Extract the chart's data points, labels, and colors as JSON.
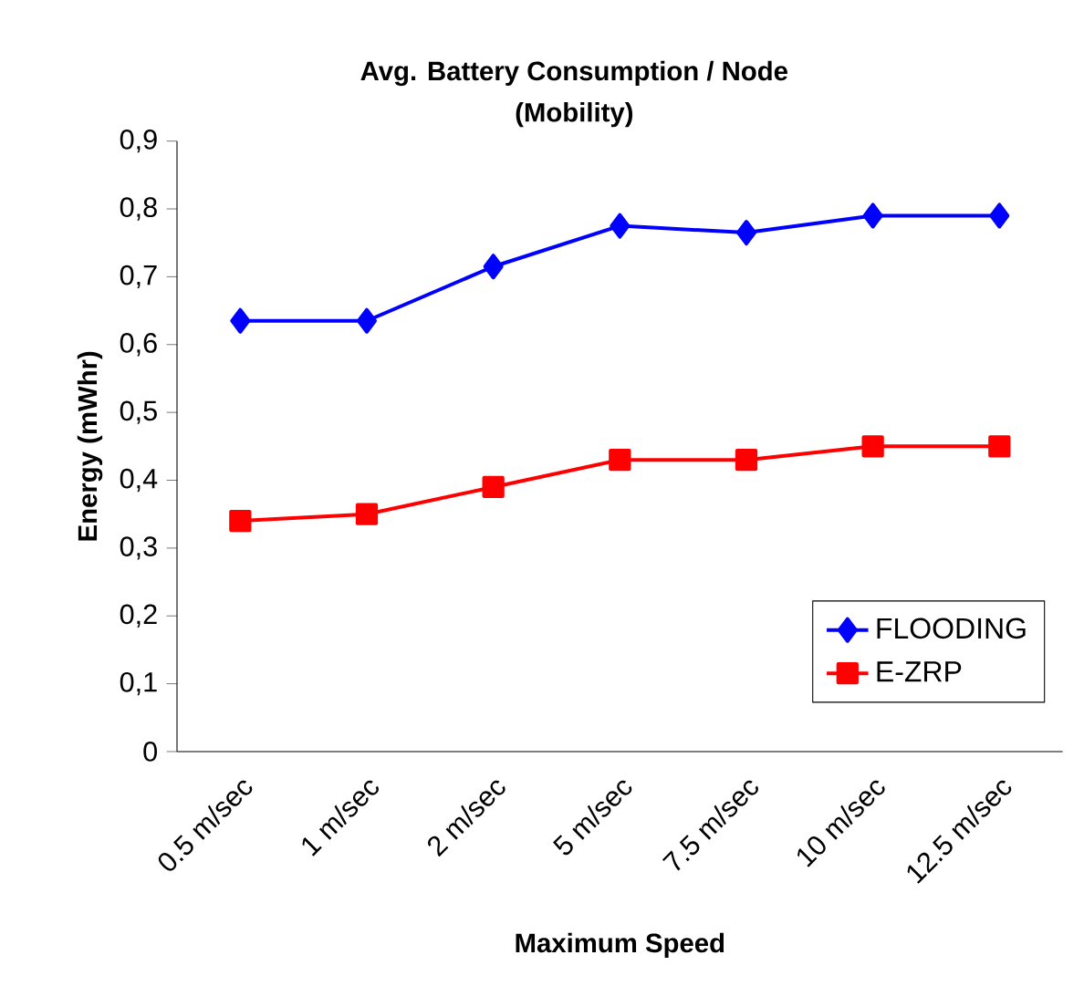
{
  "chart_data": {
    "type": "line",
    "title": "Avg. Battery Consumption / Node",
    "subtitle": "(Mobility)",
    "xlabel": "Maximum Speed",
    "ylabel": "Energy (mWhr)",
    "categories": [
      "0.5 m/sec",
      "1 m/sec",
      "2 m/sec",
      "5 m/sec",
      "7.5 m/sec",
      "10 m/sec",
      "12.5 m/sec"
    ],
    "series": [
      {
        "name": "FLOODING",
        "color": "#0000ff",
        "marker": "diamond",
        "values": [
          0.635,
          0.635,
          0.715,
          0.775,
          0.765,
          0.79,
          0.79
        ]
      },
      {
        "name": "E-ZRP",
        "color": "#ff0000",
        "marker": "square",
        "values": [
          0.34,
          0.35,
          0.39,
          0.43,
          0.43,
          0.45,
          0.45
        ]
      }
    ],
    "ylim": [
      0,
      0.9
    ],
    "yticks": [
      0,
      {
        "value": 0.1,
        "label": "0,1"
      },
      {
        "value": 0.2,
        "label": "0,2"
      },
      {
        "value": 0.3,
        "label": "0,3"
      },
      {
        "value": 0.4,
        "label": "0,4"
      },
      {
        "value": 0.5,
        "label": "0,5"
      },
      {
        "value": 0.6,
        "label": "0,6"
      },
      {
        "value": 0.7,
        "label": "0,7"
      },
      {
        "value": 0.8,
        "label": "0,8"
      },
      {
        "value": 0.9,
        "label": "0,9"
      }
    ],
    "grid": false,
    "legend": "bottom right",
    "line_style": "solid"
  }
}
